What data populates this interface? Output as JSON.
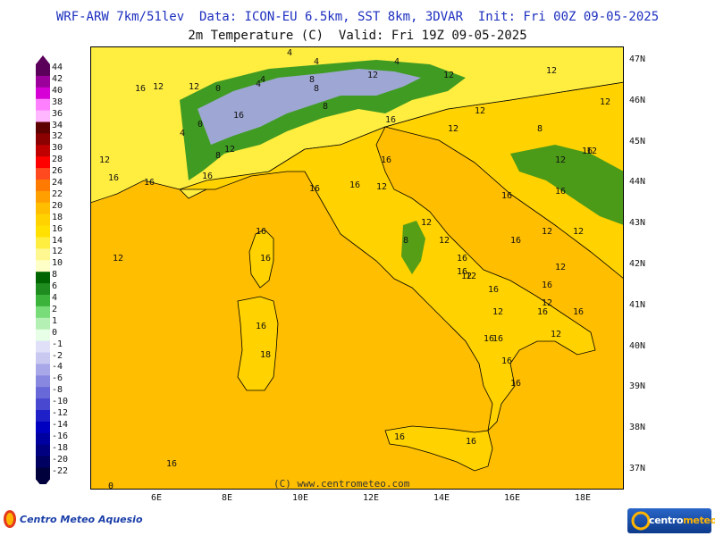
{
  "header": {
    "line1": "WRF-ARW 7km/51lev  Data: ICON-EU 6.5km, SST 8km, 3DVAR  Init: Fri 00Z 09-05-2025",
    "line2": "2m Temperature (C)  Valid: Fri 19Z 09-05-2025"
  },
  "legend": {
    "labels": [
      "44",
      "42",
      "40",
      "38",
      "36",
      "34",
      "32",
      "30",
      "28",
      "26",
      "24",
      "22",
      "20",
      "18",
      "16",
      "14",
      "12",
      "10",
      "8",
      "6",
      "4",
      "2",
      "1",
      "0",
      "-1",
      "-2",
      "-4",
      "-6",
      "-8",
      "-10",
      "-12",
      "-14",
      "-16",
      "-18",
      "-20",
      "-22"
    ],
    "colors": [
      "#5a005a",
      "#9b009b",
      "#d600d6",
      "#ff80ff",
      "#ffb8ff",
      "#5c0000",
      "#8b0000",
      "#c00000",
      "#ff0000",
      "#ff4a20",
      "#ff7a00",
      "#ffa000",
      "#ffbe00",
      "#ffd200",
      "#ffe000",
      "#ffee40",
      "#fff890",
      "#ffffc8",
      "#006400",
      "#1e8c1e",
      "#3cb43c",
      "#78dc78",
      "#b4f0b4",
      "#e6ffe6",
      "#e0e0f8",
      "#c8c8f0",
      "#a8a8e8",
      "#8888e0",
      "#6868d8",
      "#4848d0",
      "#2020c8",
      "#0000c0",
      "#0000a0",
      "#000080",
      "#000060",
      "#00003c"
    ]
  },
  "axes": {
    "lat_labels": [
      "47N",
      "46N",
      "45N",
      "44N",
      "43N",
      "42N",
      "41N",
      "40N",
      "39N",
      "38N",
      "37N"
    ],
    "lon_labels": [
      "6E",
      "8E",
      "10E",
      "12E",
      "14E",
      "16E",
      "18E"
    ]
  },
  "contour_labels": [
    "16",
    "12",
    "12",
    "0",
    "4",
    "8",
    "12",
    "16",
    "4",
    "0",
    "4",
    "8",
    "4",
    "12",
    "16",
    "12",
    "12",
    "8",
    "12",
    "16",
    "16",
    "16",
    "12",
    "12",
    "12",
    "16",
    "16",
    "12",
    "16",
    "16",
    "16",
    "18",
    "16",
    "16",
    "12",
    "8",
    "12",
    "16",
    "12",
    "16",
    "16",
    "12",
    "16",
    "12",
    "16",
    "16",
    "16",
    "12",
    "8",
    "16",
    "12",
    "16",
    "12",
    "16",
    "16",
    "12",
    "12",
    "16",
    "16",
    "16",
    "16",
    "16",
    "0",
    "4",
    "4",
    "8",
    "12",
    "12",
    "12"
  ],
  "footer": {
    "copyright": "(C) www.centrometeo.com",
    "brand_left": "Centro Meteo Aquesio",
    "brand_right_a": "centro",
    "brand_right_b": "meteo"
  },
  "colors": {
    "sea": "#ffbe00",
    "lowland": "#ffd200",
    "hills": "#ffee40",
    "mountain_green": "#1e8c1e",
    "alpine_blue": "#a8a8e8",
    "title_blue": "#1c2fbf"
  }
}
